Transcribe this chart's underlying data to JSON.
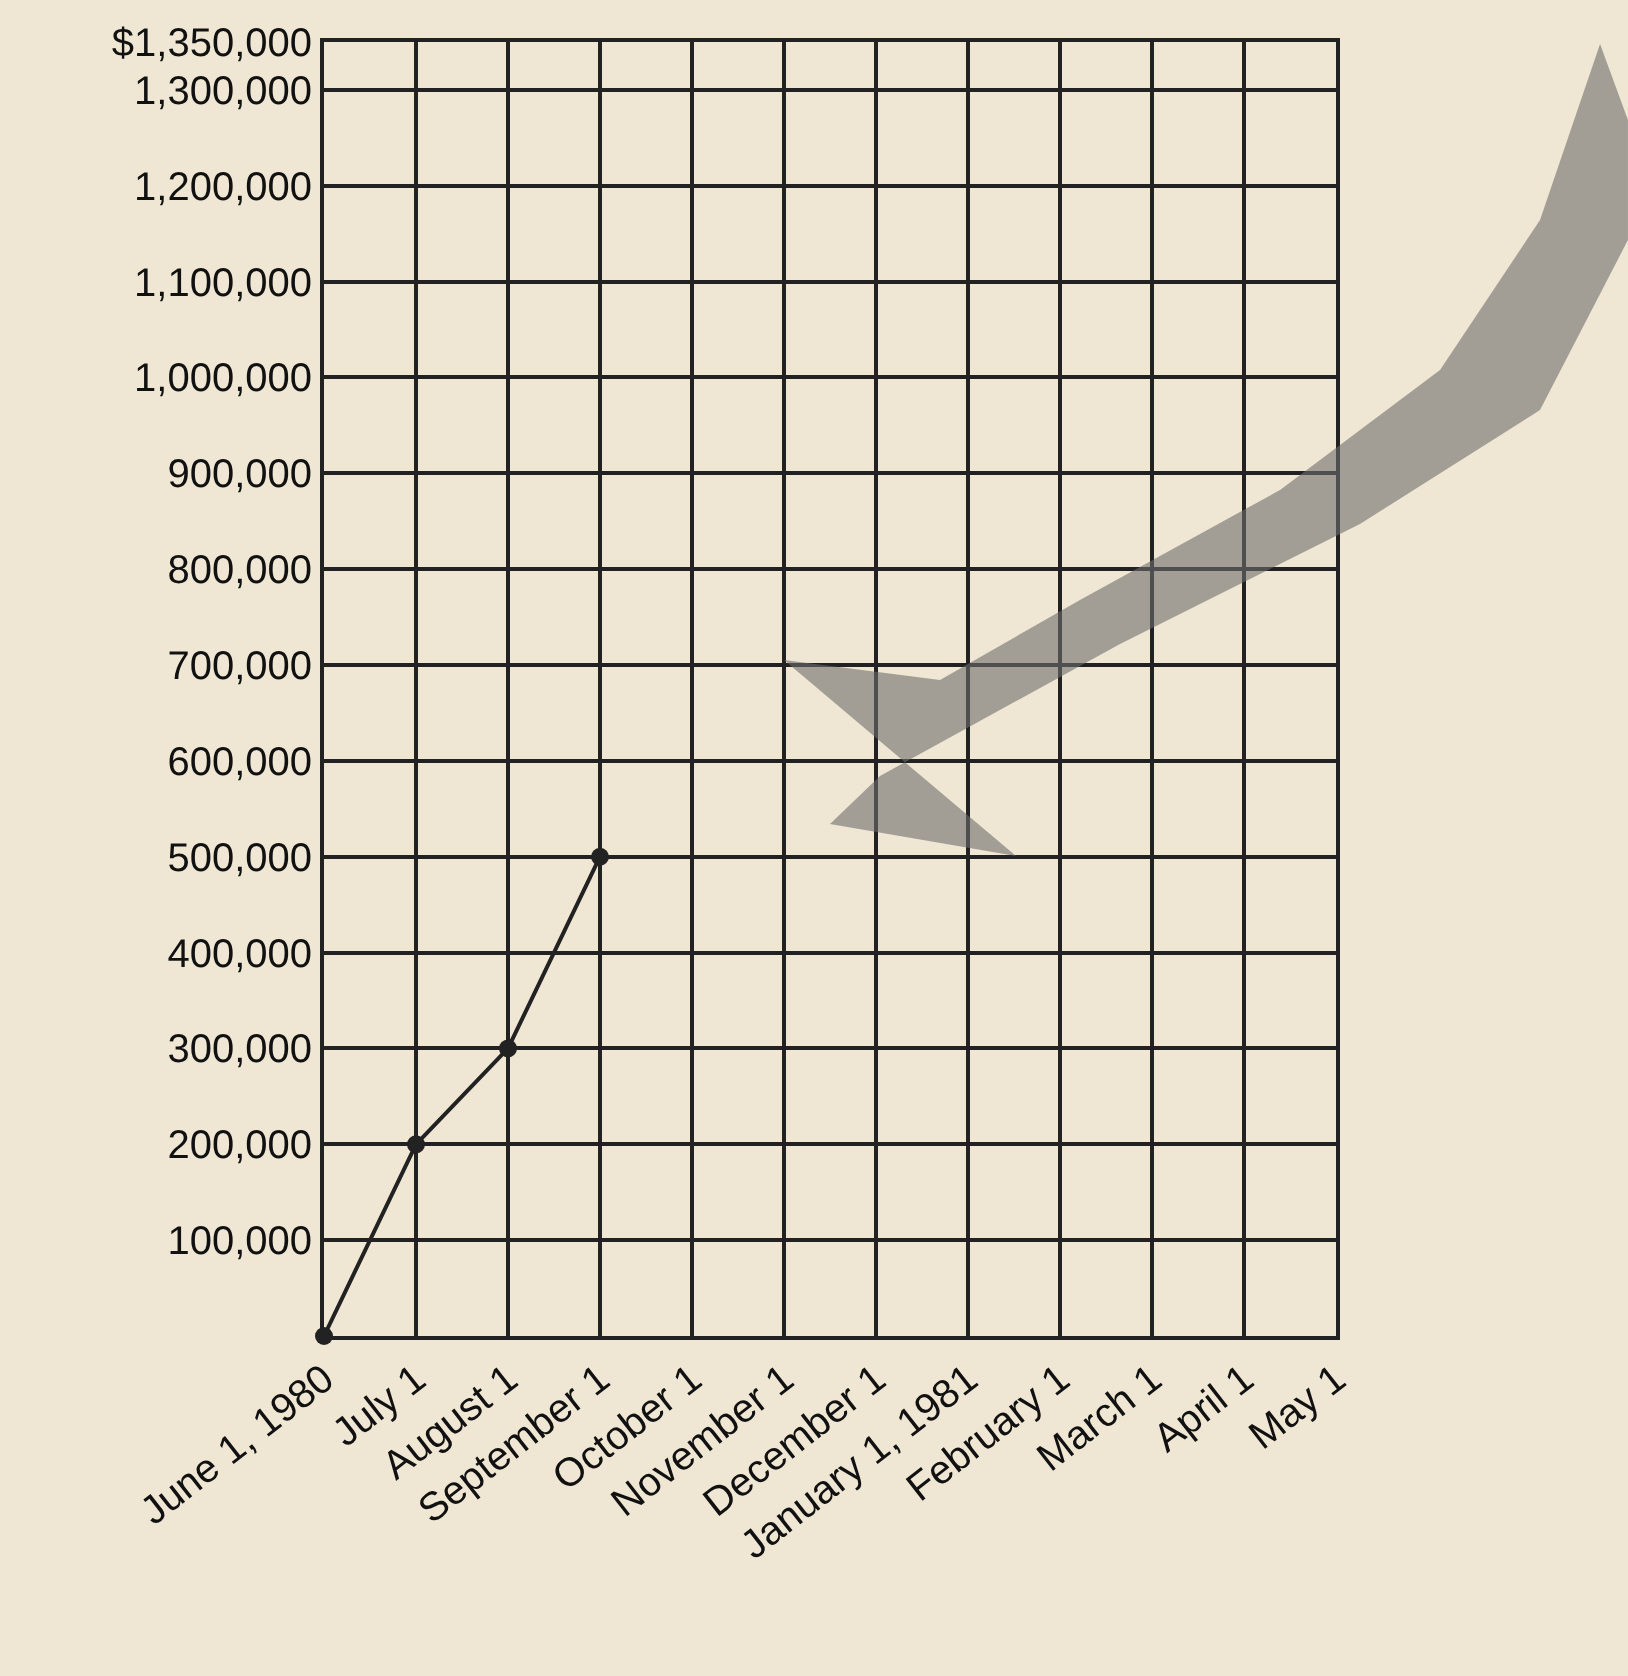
{
  "chart_data": {
    "type": "line",
    "categories": [
      "June 1, 1980",
      "July 1",
      "August 1",
      "September 1",
      "October 1",
      "November 1",
      "December 1",
      "January 1, 1981",
      "February 1",
      "March 1",
      "April 1",
      "May 1"
    ],
    "series": [
      {
        "color": "#222222",
        "values": [
          0,
          200000,
          300000,
          500000,
          null,
          null,
          null,
          null,
          null,
          null,
          null,
          null
        ]
      }
    ],
    "ylim": [
      0,
      1350000
    ],
    "yticks": [
      {
        "value": 100000,
        "label": "100,000"
      },
      {
        "value": 200000,
        "label": "200,000"
      },
      {
        "value": 300000,
        "label": "300,000"
      },
      {
        "value": 400000,
        "label": "400,000"
      },
      {
        "value": 500000,
        "label": "500,000"
      },
      {
        "value": 600000,
        "label": "600,000"
      },
      {
        "value": 700000,
        "label": "700,000"
      },
      {
        "value": 800000,
        "label": "800,000"
      },
      {
        "value": 900000,
        "label": "900,000"
      },
      {
        "value": 1000000,
        "label": "1,000,000"
      },
      {
        "value": 1100000,
        "label": "1,100,000"
      },
      {
        "value": 1200000,
        "label": "1,200,000"
      },
      {
        "value": 1300000,
        "label": "1,300,000"
      },
      {
        "value": 1350000,
        "label": "$1,350,000"
      }
    ],
    "grid": true,
    "marker": "circle",
    "line_style": "solid"
  }
}
